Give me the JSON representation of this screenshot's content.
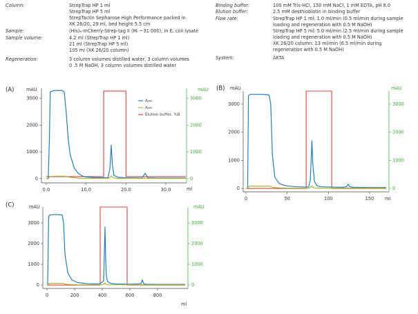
{
  "conditions": {
    "left": [
      {
        "label": "Column:",
        "lines": [
          "StrepTrap HP 1 ml",
          "StrepTrap HP 5 ml",
          "StrepTactin Sepharose High Performance packed in",
          "XK 26/20, 29 ml, bed height 5.5 cm"
        ]
      },
      {
        "label": "Sample:",
        "lines": [
          "(His)₆-mCherry-Strep-tag II (Mᵣ ~31 000), in E. coli lysate"
        ]
      },
      {
        "label": "Sample volume:",
        "lines": [
          "4.2 ml (StrepTrap HP 1 ml)",
          "21 ml (StrepTrap HP 5 ml)",
          "105 ml (XK 26/20 column)"
        ]
      },
      {
        "label": "Regeneration:",
        "lines": [
          "3 column volumes distilled water, 3 column volumes",
          "0 .5 M NaOH, 3 column volumes distilled water"
        ]
      }
    ],
    "right": [
      {
        "label": "Binding buffer:",
        "lines": [
          "100 mM Tris-HCl, 150 mM NaCl, 1 mM EDTA, pH 8.0"
        ]
      },
      {
        "label": "Elution buffer:",
        "lines": [
          "2.5 mM desthiobiotin in binding buffer"
        ]
      },
      {
        "label": "Flow rate:",
        "lines": [
          "StrepTrap HP 1 ml: 1.0 ml/min (0.5 ml/min during sample",
          "loading and regeneration with 0.5 M NaOH)",
          "StrepTrap HP 5 ml: 5.0 ml/min (2.5 ml/min during sample",
          "loading and regeneration with 0.5 M NaOH)",
          "XK 26/20 column: 13 ml/min (6.5 ml/min during",
          "regeneration with 0.5 M NaOH)"
        ]
      },
      {
        "label": "System:",
        "lines": [
          "ÄKTA"
        ]
      }
    ]
  },
  "chart_data": [
    {
      "type": "line",
      "panel_label": "(A)",
      "y_label": "mAU",
      "y2_label": "mAU",
      "x_label": "ml",
      "y2_color": "#3aa935",
      "xlim": [
        -1.2,
        35.2
      ],
      "xticks": [
        {
          "value": 0,
          "label": "0.0"
        },
        {
          "value": 10,
          "label": "10.0"
        },
        {
          "value": 20,
          "label": "20.0"
        },
        {
          "value": 30,
          "label": "30.0"
        }
      ],
      "ylim": [
        -160,
        3380
      ],
      "yticks": [
        0,
        1000,
        2000,
        3000
      ],
      "y2lim": [
        -160,
        3380
      ],
      "y2ticks": [
        0,
        1000,
        2000,
        3000
      ],
      "y3lim": [
        -7.3,
        103.2
      ],
      "legend": "upper right",
      "series": [
        {
          "name": "A₂₈₀",
          "color": "#1f7fc0",
          "axis": "y",
          "x": [
            0,
            0.5,
            0.8,
            1,
            2,
            3,
            4,
            4.5,
            5,
            5.5,
            6,
            7,
            8,
            9,
            10,
            12,
            14,
            15.5,
            16,
            16.3,
            16.6,
            17,
            18,
            20,
            24,
            24.8,
            25.5,
            28,
            32,
            35
          ],
          "values": [
            0,
            0,
            1500,
            3250,
            3300,
            3300,
            3300,
            3250,
            2500,
            1500,
            900,
            400,
            200,
            100,
            60,
            40,
            30,
            30,
            400,
            1250,
            500,
            120,
            50,
            30,
            20,
            200,
            30,
            20,
            20,
            20
          ]
        },
        {
          "name": "A₂₆₀",
          "color": "#a8b62c",
          "axis": "y2",
          "x": [
            0,
            0.5,
            0.8,
            1,
            2,
            3,
            4,
            4.5,
            5,
            5.5,
            6,
            7,
            8,
            9,
            10,
            12,
            14,
            15.5,
            16,
            16.3,
            16.6,
            17,
            18,
            20,
            24,
            24.8,
            25.5,
            28,
            32,
            35
          ],
          "values": [
            0,
            0,
            50,
            80,
            90,
            90,
            90,
            90,
            80,
            60,
            50,
            30,
            20,
            10,
            10,
            10,
            10,
            10,
            50,
            100,
            50,
            20,
            10,
            10,
            10,
            20,
            10,
            10,
            10,
            10
          ]
        },
        {
          "name": "Elution buffer, %B",
          "color": "#e2413b",
          "axis": "y3",
          "x": [
            0,
            14.4,
            14.4,
            20,
            20,
            35
          ],
          "values": [
            0,
            0,
            100,
            100,
            0,
            0
          ]
        }
      ]
    },
    {
      "type": "line",
      "panel_label": "(B)",
      "y_label": "mAU",
      "y2_label": "mAU",
      "x_label": "ml",
      "y2_color": "#3aa935",
      "xlim": [
        -3.4,
        173.5
      ],
      "xticks": [
        0,
        50,
        100,
        150
      ],
      "ylim": [
        -123,
        3465
      ],
      "yticks": [
        0,
        1000,
        2000,
        3000
      ],
      "y2lim": [
        -123,
        3465
      ],
      "y2ticks": [
        0,
        1000,
        2000,
        3000
      ],
      "y3lim": [
        -3.5,
        100
      ],
      "series": [
        {
          "color": "#1f7fc0",
          "axis": "y",
          "x": [
            0,
            2,
            3,
            5,
            10,
            20,
            28,
            30,
            32,
            35,
            40,
            45,
            50,
            60,
            70,
            76,
            78,
            80,
            81,
            83,
            86,
            90,
            100,
            118,
            122,
            124,
            126,
            130,
            150,
            170
          ],
          "values": [
            0,
            0,
            3300,
            3350,
            3350,
            3350,
            3330,
            3000,
            1200,
            400,
            180,
            120,
            90,
            60,
            50,
            50,
            300,
            1700,
            900,
            250,
            100,
            60,
            50,
            40,
            60,
            150,
            60,
            40,
            30,
            30
          ]
        },
        {
          "color": "#a8b62c",
          "axis": "y2",
          "x": [
            0,
            2,
            3,
            5,
            10,
            20,
            28,
            30,
            32,
            35,
            40,
            45,
            50,
            60,
            70,
            76,
            78,
            80,
            81,
            83,
            86,
            90,
            100,
            118,
            122,
            124,
            126,
            130,
            150,
            170
          ],
          "values": [
            0,
            0,
            60,
            80,
            80,
            80,
            80,
            70,
            40,
            30,
            20,
            15,
            10,
            10,
            10,
            10,
            30,
            80,
            40,
            20,
            10,
            10,
            10,
            10,
            10,
            20,
            10,
            10,
            10,
            10
          ]
        },
        {
          "color": "#e2413b",
          "axis": "y3",
          "x": [
            0,
            73,
            73,
            104,
            104,
            170
          ],
          "values": [
            0,
            0,
            100,
            100,
            0,
            0
          ]
        }
      ]
    },
    {
      "type": "line",
      "panel_label": "(C)",
      "y_label": "mAU",
      "y2_label": "mAU",
      "x_label": "ml",
      "y2_color": "#3aa935",
      "xlim": [
        -30,
        1020
      ],
      "xticks": [
        0,
        200,
        400,
        600,
        800
      ],
      "ylim": [
        -167,
        3767
      ],
      "yticks": [
        0,
        1000,
        2000,
        3000
      ],
      "y2lim": [
        -167,
        3767
      ],
      "y2ticks": [
        0,
        1000,
        2000,
        3000
      ],
      "y3lim": [
        -4.4,
        100
      ],
      "series": [
        {
          "color": "#1f7fc0",
          "axis": "y",
          "x": [
            0,
            5,
            12,
            20,
            40,
            80,
            110,
            120,
            130,
            150,
            180,
            220,
            300,
            380,
            410,
            420,
            425,
            430,
            440,
            460,
            500,
            600,
            680,
            690,
            700,
            720,
            800,
            1000
          ],
          "values": [
            0,
            0,
            3300,
            3380,
            3400,
            3400,
            3380,
            3000,
            1500,
            600,
            250,
            120,
            60,
            50,
            200,
            2800,
            1200,
            400,
            150,
            80,
            50,
            40,
            60,
            250,
            60,
            40,
            30,
            30
          ]
        },
        {
          "color": "#a8b62c",
          "axis": "y2",
          "x": [
            0,
            5,
            12,
            20,
            40,
            80,
            110,
            120,
            130,
            150,
            180,
            220,
            300,
            380,
            410,
            420,
            425,
            430,
            440,
            460,
            500,
            600,
            680,
            690,
            700,
            720,
            800,
            1000
          ],
          "values": [
            0,
            0,
            60,
            80,
            80,
            80,
            80,
            70,
            40,
            30,
            20,
            10,
            10,
            10,
            30,
            100,
            50,
            20,
            10,
            10,
            10,
            10,
            10,
            20,
            10,
            10,
            10,
            10
          ]
        },
        {
          "color": "#e2413b",
          "axis": "y3",
          "x": [
            0,
            385,
            385,
            580,
            580,
            1000
          ],
          "values": [
            0,
            0,
            100,
            100,
            0,
            0
          ]
        }
      ]
    }
  ]
}
